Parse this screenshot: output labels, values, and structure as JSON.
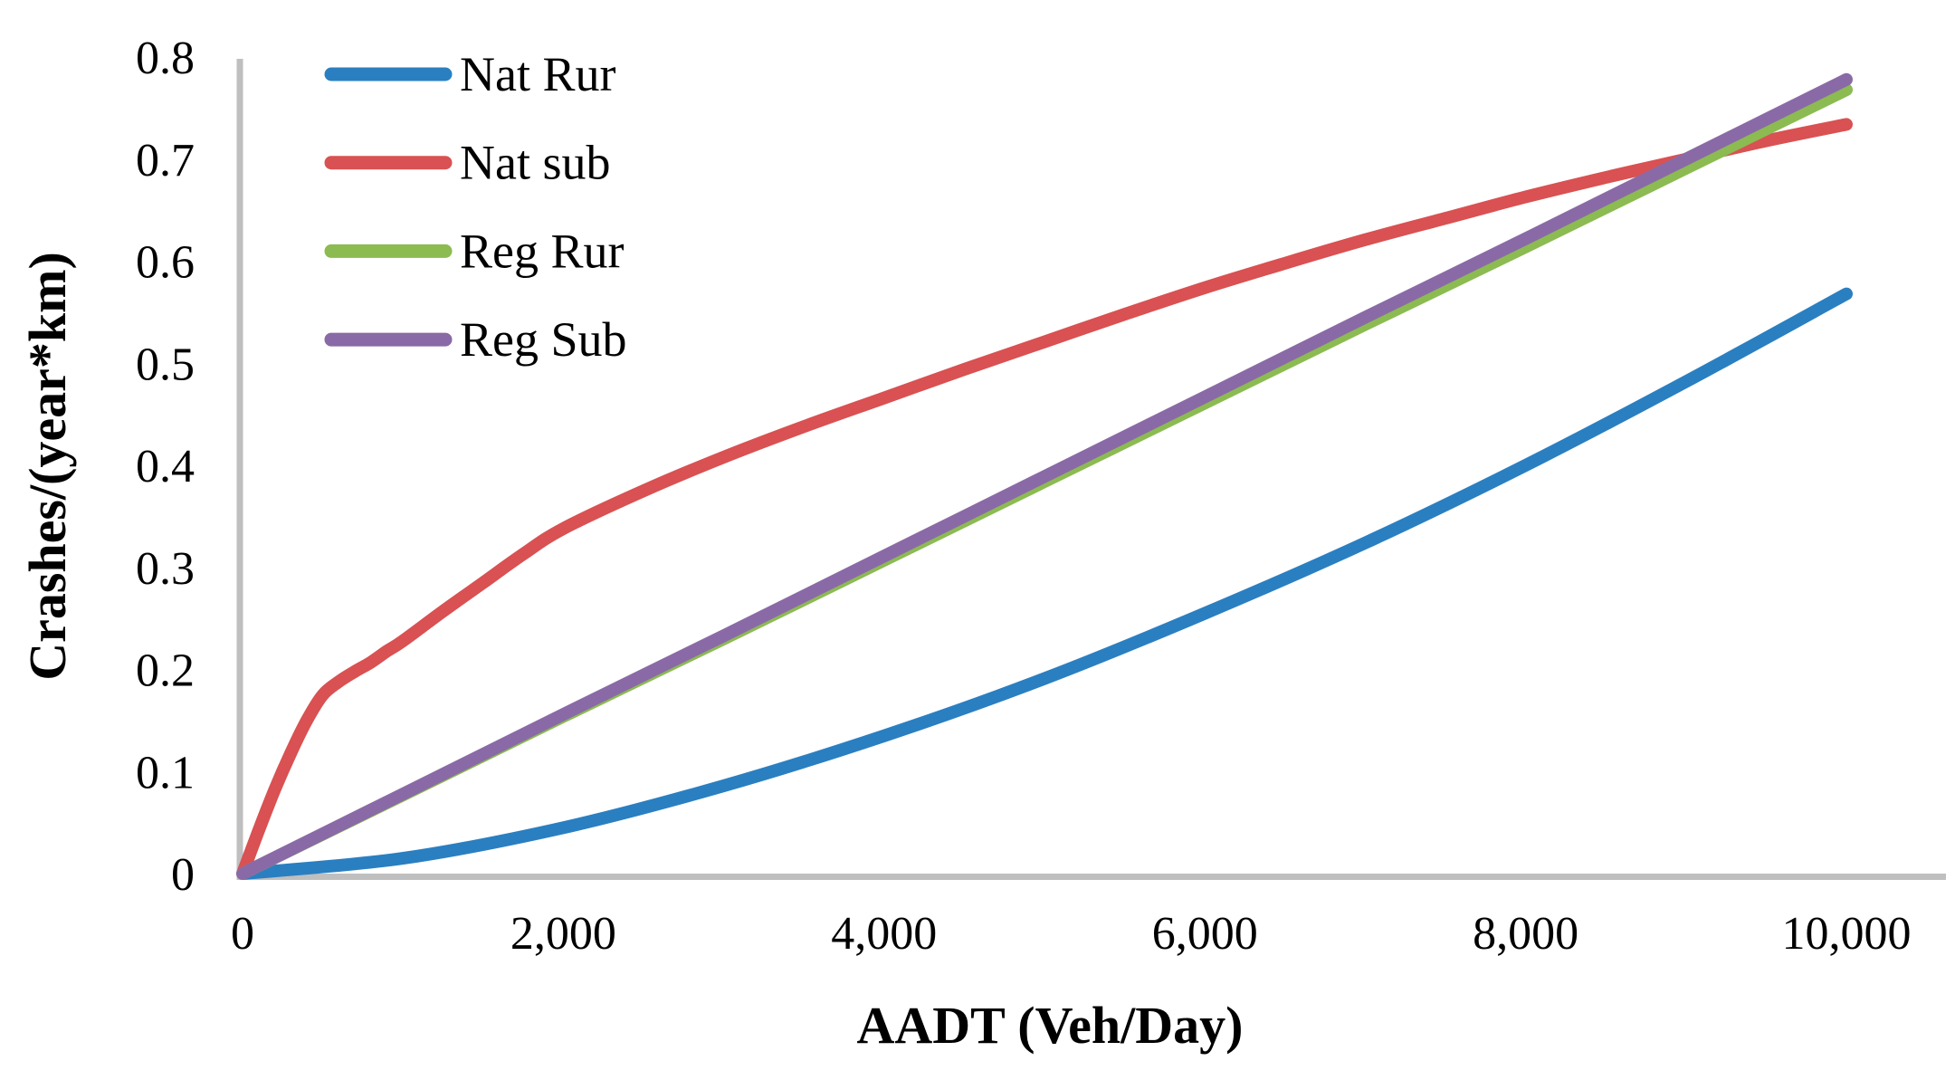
{
  "figure": {
    "background_color": "#FFFFFF",
    "axis_line_color": "#BFBFBF",
    "text_color": "#000000"
  },
  "chart_data": {
    "type": "line",
    "title": "",
    "xlabel": "AADT (Veh/Day)",
    "ylabel": "Crashes/(year*km)",
    "xlim": [
      0,
      10000
    ],
    "ylim": [
      0,
      0.8
    ],
    "grid": false,
    "legend_position": "top-left",
    "x_ticks": {
      "values": [
        0,
        2000,
        4000,
        6000,
        8000,
        10000
      ],
      "labels": [
        "0",
        "2,000",
        "4,000",
        "6,000",
        "8,000",
        "10,000"
      ]
    },
    "y_ticks": {
      "values": [
        0,
        0.1,
        0.2,
        0.3,
        0.4,
        0.5,
        0.6,
        0.7,
        0.8
      ],
      "labels": [
        "0",
        "0.1",
        "0.2",
        "0.3",
        "0.4",
        "0.5",
        "0.6",
        "0.7",
        "0.8"
      ]
    },
    "series": [
      {
        "name": "Nat Rur",
        "color": "#2A7FC1",
        "x": [
          0,
          1000,
          2000,
          3000,
          4000,
          5000,
          6000,
          7000,
          8000,
          9000,
          10000
        ],
        "y": [
          0,
          0.015,
          0.045,
          0.086,
          0.135,
          0.191,
          0.255,
          0.324,
          0.4,
          0.482,
          0.568
        ]
      },
      {
        "name": "Nat sub",
        "color": "#D95152",
        "x": [
          0,
          100,
          200,
          300,
          400,
          500,
          600,
          700,
          800,
          900,
          1000,
          1250,
          1500,
          1750,
          2000,
          2500,
          3000,
          3500,
          4000,
          4500,
          5000,
          5500,
          6000,
          6500,
          7000,
          7500,
          8000,
          8500,
          9000,
          9500,
          10000
        ],
        "y": [
          0,
          0.042,
          0.082,
          0.118,
          0.15,
          0.175,
          0.188,
          0.198,
          0.207,
          0.218,
          0.228,
          0.257,
          0.285,
          0.313,
          0.338,
          0.375,
          0.408,
          0.438,
          0.466,
          0.494,
          0.521,
          0.548,
          0.574,
          0.598,
          0.621,
          0.642,
          0.663,
          0.682,
          0.7,
          0.718,
          0.734
        ]
      },
      {
        "name": "Reg Rur",
        "color": "#8CBB52",
        "x": [
          0,
          1000,
          2000,
          3000,
          4000,
          5000,
          6000,
          7000,
          8000,
          9000,
          10000
        ],
        "y": [
          0,
          0.077,
          0.154,
          0.23,
          0.307,
          0.384,
          0.461,
          0.538,
          0.614,
          0.691,
          0.768
        ]
      },
      {
        "name": "Reg Sub",
        "color": "#8A6AA6",
        "x": [
          0,
          1000,
          2000,
          3000,
          4000,
          5000,
          6000,
          7000,
          8000,
          9000,
          10000
        ],
        "y": [
          0,
          0.078,
          0.156,
          0.233,
          0.311,
          0.389,
          0.467,
          0.545,
          0.622,
          0.7,
          0.778
        ]
      }
    ]
  }
}
